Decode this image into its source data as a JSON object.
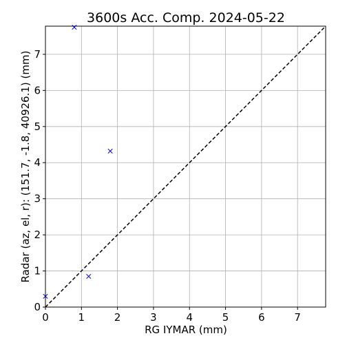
{
  "chart_data": {
    "type": "scatter",
    "title": "3600s Acc. Comp. 2024-05-22",
    "xlabel": "RG IYMAR (mm)",
    "ylabel": "Radar (az, el, r): (151.7, -1.8, 40926.1) (mm)",
    "xlim": [
      0,
      7.78
    ],
    "ylim": [
      0,
      7.78
    ],
    "xticks": [
      0,
      1,
      2,
      3,
      4,
      5,
      6,
      7
    ],
    "yticks": [
      0,
      1,
      2,
      3,
      4,
      5,
      6,
      7
    ],
    "grid": true,
    "marker": "x",
    "marker_color": "#0000ff",
    "reference_line": {
      "style": "dashed",
      "color": "#000000",
      "from": [
        0,
        0
      ],
      "to": [
        7.78,
        7.78
      ]
    },
    "points": [
      {
        "x": 0.0,
        "y": 0.3
      },
      {
        "x": 0.8,
        "y": 7.75
      },
      {
        "x": 1.2,
        "y": 0.85
      },
      {
        "x": 1.8,
        "y": 4.32
      }
    ]
  }
}
